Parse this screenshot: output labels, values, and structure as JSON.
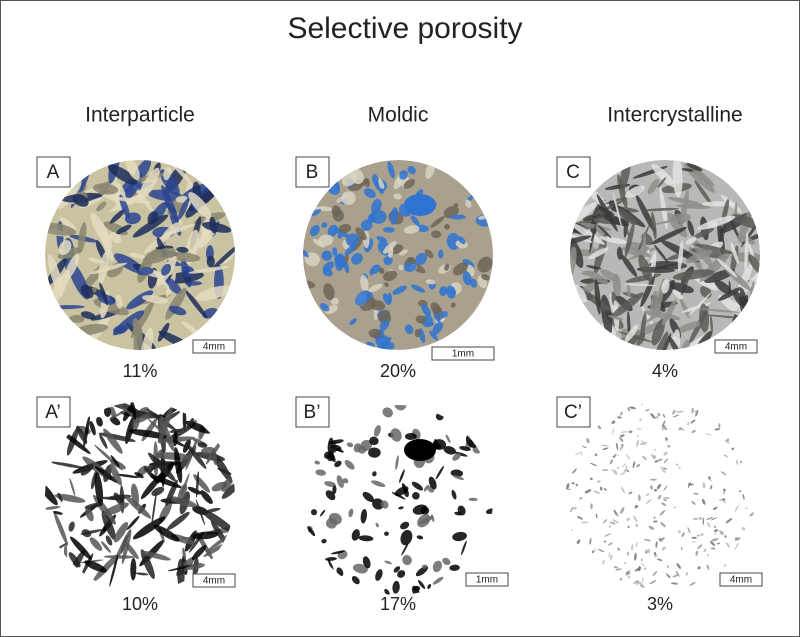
{
  "title": "Selective porosity",
  "columns": [
    {
      "heading": "Interparticle",
      "panels": [
        {
          "label": "A",
          "scale": "4mm",
          "porosity": "11%"
        },
        {
          "label": "A’",
          "scale": "4mm",
          "porosity": "10%"
        }
      ]
    },
    {
      "heading": "Moldic",
      "panels": [
        {
          "label": "B",
          "scale": "1mm",
          "porosity": "20%"
        },
        {
          "label": "B’",
          "scale": "1mm",
          "porosity": "17%"
        }
      ]
    },
    {
      "heading": "Intercrystalline",
      "panels": [
        {
          "label": "C",
          "scale": "4mm",
          "porosity": "4%"
        },
        {
          "label": "C’",
          "scale": "4mm",
          "porosity": "3%"
        }
      ]
    }
  ]
}
